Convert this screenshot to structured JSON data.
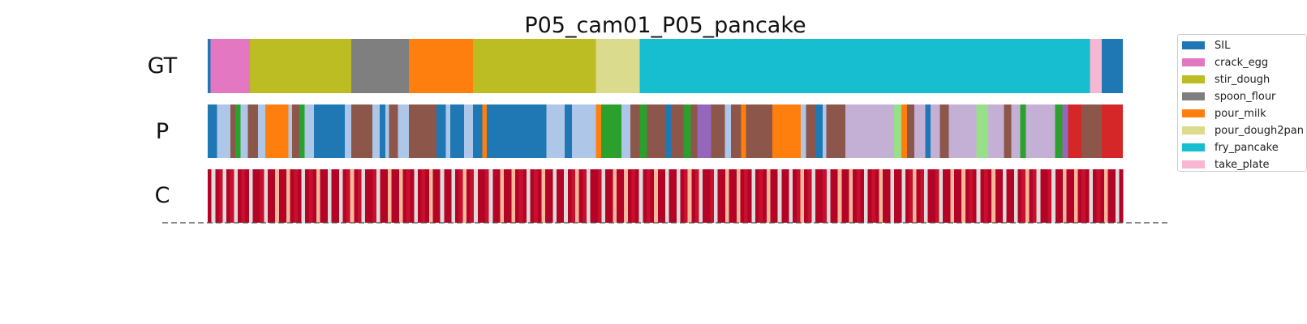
{
  "chart_data": {
    "type": "segmentation",
    "title": "P05_cam01_P05_pancake",
    "rows": [
      "GT",
      "P",
      "C"
    ],
    "classes": [
      {
        "name": "SIL",
        "color": "#1f77b4"
      },
      {
        "name": "crack_egg",
        "color": "#e377c2"
      },
      {
        "name": "stir_dough",
        "color": "#bcbd22"
      },
      {
        "name": "spoon_flour",
        "color": "#7f7f7f"
      },
      {
        "name": "pour_milk",
        "color": "#ff7f0e"
      },
      {
        "name": "pour_dough2pan",
        "color": "#dbdb8d"
      },
      {
        "name": "fry_pancake",
        "color": "#17becf"
      },
      {
        "name": "take_plate",
        "color": "#f7b6d2"
      }
    ],
    "extra_colors": [
      "#aec7e8",
      "#2ca02c",
      "#8c564b",
      "#9467bd",
      "#d62728",
      "#c5b0d5",
      "#98df8a"
    ],
    "gt_segments": [
      {
        "label": "SIL",
        "start": 0.0,
        "end": 0.003
      },
      {
        "label": "crack_egg",
        "start": 0.003,
        "end": 0.046
      },
      {
        "label": "stir_dough",
        "start": 0.046,
        "end": 0.157
      },
      {
        "label": "spoon_flour",
        "start": 0.157,
        "end": 0.22
      },
      {
        "label": "pour_milk",
        "start": 0.22,
        "end": 0.29
      },
      {
        "label": "stir_dough",
        "start": 0.29,
        "end": 0.424
      },
      {
        "label": "pour_dough2pan",
        "start": 0.424,
        "end": 0.472
      },
      {
        "label": "fry_pancake",
        "start": 0.472,
        "end": 0.964
      },
      {
        "label": "take_plate",
        "start": 0.964,
        "end": 0.977
      },
      {
        "label": "SIL",
        "start": 0.977,
        "end": 1.0
      }
    ],
    "p_segments": [
      {
        "color": "#1f77b4",
        "start": 0.0,
        "end": 0.01
      },
      {
        "color": "#aec7e8",
        "start": 0.01,
        "end": 0.025
      },
      {
        "color": "#8c564b",
        "start": 0.025,
        "end": 0.03
      },
      {
        "color": "#2ca02c",
        "start": 0.03,
        "end": 0.036
      },
      {
        "color": "#aec7e8",
        "start": 0.036,
        "end": 0.044
      },
      {
        "color": "#8c564b",
        "start": 0.044,
        "end": 0.055
      },
      {
        "color": "#aec7e8",
        "start": 0.055,
        "end": 0.063
      },
      {
        "color": "#ff7f0e",
        "start": 0.063,
        "end": 0.088
      },
      {
        "color": "#aec7e8",
        "start": 0.088,
        "end": 0.092
      },
      {
        "color": "#8c564b",
        "start": 0.092,
        "end": 0.1
      },
      {
        "color": "#2ca02c",
        "start": 0.1,
        "end": 0.106
      },
      {
        "color": "#aec7e8",
        "start": 0.106,
        "end": 0.116
      },
      {
        "color": "#1f77b4",
        "start": 0.116,
        "end": 0.15
      },
      {
        "color": "#aec7e8",
        "start": 0.15,
        "end": 0.157
      },
      {
        "color": "#8c564b",
        "start": 0.157,
        "end": 0.18
      },
      {
        "color": "#aec7e8",
        "start": 0.18,
        "end": 0.188
      },
      {
        "color": "#1f77b4",
        "start": 0.188,
        "end": 0.194
      },
      {
        "color": "#aec7e8",
        "start": 0.194,
        "end": 0.198
      },
      {
        "color": "#8c564b",
        "start": 0.198,
        "end": 0.208
      },
      {
        "color": "#aec7e8",
        "start": 0.208,
        "end": 0.22
      },
      {
        "color": "#8c564b",
        "start": 0.22,
        "end": 0.25
      },
      {
        "color": "#1f77b4",
        "start": 0.25,
        "end": 0.26
      },
      {
        "color": "#aec7e8",
        "start": 0.26,
        "end": 0.265
      },
      {
        "color": "#1f77b4",
        "start": 0.265,
        "end": 0.28
      },
      {
        "color": "#aec7e8",
        "start": 0.28,
        "end": 0.29
      },
      {
        "color": "#1f77b4",
        "start": 0.29,
        "end": 0.3
      },
      {
        "color": "#ff7f0e",
        "start": 0.3,
        "end": 0.305
      },
      {
        "color": "#1f77b4",
        "start": 0.305,
        "end": 0.37
      },
      {
        "color": "#aec7e8",
        "start": 0.37,
        "end": 0.39
      },
      {
        "color": "#1f77b4",
        "start": 0.39,
        "end": 0.398
      },
      {
        "color": "#aec7e8",
        "start": 0.398,
        "end": 0.424
      },
      {
        "color": "#ff7f0e",
        "start": 0.424,
        "end": 0.43
      },
      {
        "color": "#2ca02c",
        "start": 0.43,
        "end": 0.452
      },
      {
        "color": "#aec7e8",
        "start": 0.452,
        "end": 0.462
      },
      {
        "color": "#8c564b",
        "start": 0.462,
        "end": 0.472
      },
      {
        "color": "#2ca02c",
        "start": 0.472,
        "end": 0.48
      },
      {
        "color": "#8c564b",
        "start": 0.48,
        "end": 0.5
      },
      {
        "color": "#1f77b4",
        "start": 0.5,
        "end": 0.506
      },
      {
        "color": "#8c564b",
        "start": 0.506,
        "end": 0.52
      },
      {
        "color": "#2ca02c",
        "start": 0.52,
        "end": 0.528
      },
      {
        "color": "#8c564b",
        "start": 0.528,
        "end": 0.535
      },
      {
        "color": "#9467bd",
        "start": 0.535,
        "end": 0.55
      },
      {
        "color": "#8c564b",
        "start": 0.55,
        "end": 0.565
      },
      {
        "color": "#aec7e8",
        "start": 0.565,
        "end": 0.572
      },
      {
        "color": "#8c564b",
        "start": 0.572,
        "end": 0.583
      },
      {
        "color": "#ff7f0e",
        "start": 0.583,
        "end": 0.588
      },
      {
        "color": "#8c564b",
        "start": 0.588,
        "end": 0.617
      },
      {
        "color": "#ff7f0e",
        "start": 0.617,
        "end": 0.648
      },
      {
        "color": "#aec7e8",
        "start": 0.648,
        "end": 0.654
      },
      {
        "color": "#8c564b",
        "start": 0.654,
        "end": 0.664
      },
      {
        "color": "#1f77b4",
        "start": 0.664,
        "end": 0.672
      },
      {
        "color": "#aec7e8",
        "start": 0.672,
        "end": 0.676
      },
      {
        "color": "#8c564b",
        "start": 0.676,
        "end": 0.697
      },
      {
        "color": "#c5b0d5",
        "start": 0.697,
        "end": 0.75
      },
      {
        "color": "#98df8a",
        "start": 0.75,
        "end": 0.758
      },
      {
        "color": "#ff7f0e",
        "start": 0.758,
        "end": 0.764
      },
      {
        "color": "#8c564b",
        "start": 0.764,
        "end": 0.772
      },
      {
        "color": "#c5b0d5",
        "start": 0.772,
        "end": 0.784
      },
      {
        "color": "#1f77b4",
        "start": 0.784,
        "end": 0.79
      },
      {
        "color": "#c5b0d5",
        "start": 0.79,
        "end": 0.8
      },
      {
        "color": "#8c564b",
        "start": 0.8,
        "end": 0.81
      },
      {
        "color": "#c5b0d5",
        "start": 0.81,
        "end": 0.84
      },
      {
        "color": "#98df8a",
        "start": 0.84,
        "end": 0.853
      },
      {
        "color": "#c5b0d5",
        "start": 0.853,
        "end": 0.87
      },
      {
        "color": "#8c564b",
        "start": 0.87,
        "end": 0.878
      },
      {
        "color": "#c5b0d5",
        "start": 0.878,
        "end": 0.888
      },
      {
        "color": "#2ca02c",
        "start": 0.888,
        "end": 0.894
      },
      {
        "color": "#c5b0d5",
        "start": 0.894,
        "end": 0.926
      },
      {
        "color": "#2ca02c",
        "start": 0.926,
        "end": 0.934
      },
      {
        "color": "#9467bd",
        "start": 0.934,
        "end": 0.94
      },
      {
        "color": "#d62728",
        "start": 0.94,
        "end": 0.955
      },
      {
        "color": "#8c564b",
        "start": 0.955,
        "end": 0.977
      },
      {
        "color": "#d62728",
        "start": 0.977,
        "end": 1.0
      }
    ],
    "confidence_bins": [
      0.98,
      0.35,
      0.95,
      0.9,
      0.4,
      1.0,
      0.92,
      0.3,
      0.97,
      0.85,
      0.99,
      0.45,
      0.93,
      1.0,
      0.88,
      0.25,
      0.96,
      0.99,
      0.7,
      1.0,
      0.94,
      0.5,
      0.98,
      0.91,
      1.0,
      0.35,
      0.97,
      0.86,
      0.99,
      0.6,
      1.0,
      0.93,
      0.4,
      0.98,
      0.95,
      0.3,
      0.99,
      0.9,
      0.75,
      1.0,
      0.92,
      0.45,
      0.97,
      1.0,
      0.88,
      0.2,
      0.96,
      0.99,
      0.65,
      1.0,
      0.94,
      0.5,
      0.98,
      0.91,
      1.0,
      0.35,
      0.97,
      0.86,
      0.99,
      0.55,
      1.0,
      0.93,
      0.4,
      0.98,
      0.95,
      0.3,
      0.99,
      0.9,
      0.75,
      1.0,
      0.92,
      0.45,
      0.97,
      1.0,
      0.88,
      0.25,
      0.96,
      0.99,
      0.7,
      1.0,
      0.94,
      0.5,
      0.98,
      0.91,
      1.0,
      0.35,
      0.97,
      0.86,
      0.99,
      0.6,
      1.0,
      0.93,
      0.4,
      0.98,
      0.95,
      0.3,
      0.99,
      0.9,
      0.75,
      1.0,
      0.92,
      0.45,
      0.97,
      1.0,
      0.88,
      0.2,
      0.96,
      0.99,
      0.65,
      1.0,
      0.94,
      0.5,
      0.98,
      0.91,
      1.0,
      0.35,
      0.97,
      0.86,
      0.99,
      0.55,
      1.0,
      0.93,
      0.4,
      0.98,
      0.95,
      0.3,
      0.99,
      0.9,
      0.75,
      1.0,
      0.92,
      0.45,
      0.97,
      1.0,
      0.88,
      0.25,
      0.96,
      0.99,
      0.7,
      1.0,
      0.94,
      0.5,
      0.98,
      0.91,
      1.0,
      0.35,
      0.97,
      0.86,
      0.99,
      0.6,
      1.0,
      0.93,
      0.4,
      0.98,
      0.95,
      0.3,
      0.99,
      0.9,
      0.75,
      1.0,
      0.92,
      0.45,
      0.97,
      1.0,
      0.88,
      0.2,
      0.96,
      0.99,
      0.65,
      1.0,
      0.94,
      0.5,
      0.98,
      0.91,
      1.0,
      0.35,
      0.97,
      0.86,
      0.99,
      0.55,
      1.0,
      0.93,
      0.4,
      0.98,
      0.95,
      0.3,
      0.99,
      0.9,
      0.75,
      1.0,
      0.92,
      0.45,
      0.97,
      1.0,
      0.88,
      0.25,
      0.96,
      0.99,
      0.7,
      1.0,
      0.94,
      0.5,
      0.98,
      0.91,
      1.0,
      0.35,
      0.97,
      0.86,
      0.99,
      0.6,
      1.0,
      0.93,
      0.4,
      0.98,
      0.95,
      0.3,
      0.99,
      0.9,
      0.75,
      1.0,
      0.92,
      0.45,
      0.97,
      1.0,
      0.88,
      0.2,
      0.96,
      0.99,
      0.65,
      1.0,
      0.94,
      0.5,
      0.98,
      0.91,
      1.0,
      0.35,
      0.97,
      0.86,
      0.99,
      0.55,
      1.0,
      0.93,
      0.4,
      0.98
    ],
    "confidence_colors": {
      "high": "#b40426",
      "mid": "#f7b89c",
      "low": "#dddcdc"
    },
    "legend_placement": "upper-right, outside plot",
    "grid": false
  }
}
